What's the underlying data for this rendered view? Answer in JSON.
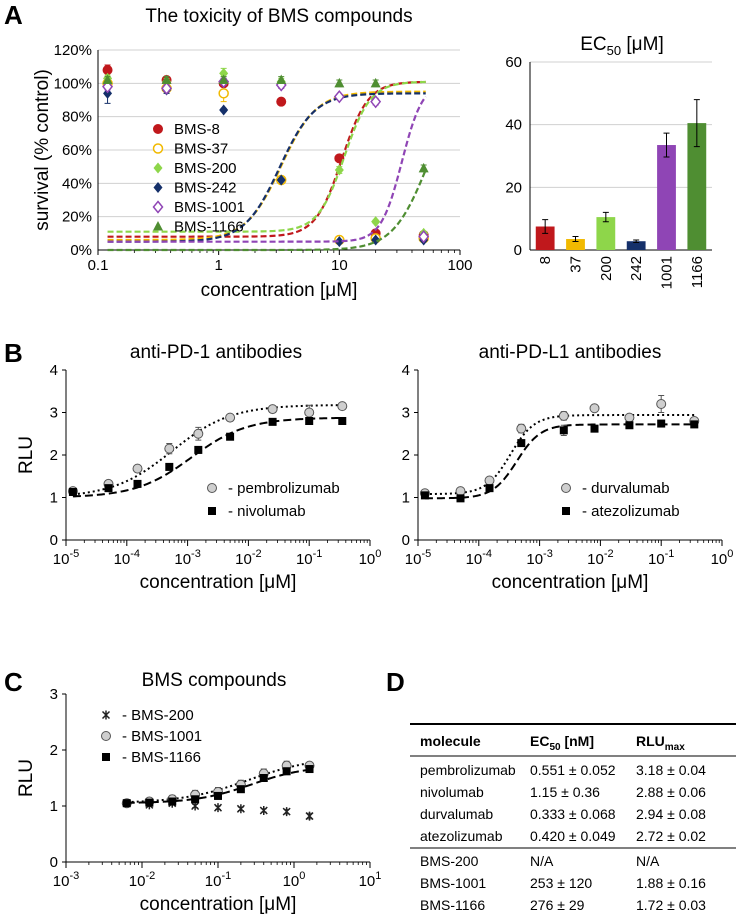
{
  "panels": {
    "A": "A",
    "B": "B",
    "C": "C",
    "D": "D"
  },
  "chart_data": [
    {
      "id": "A-curves",
      "type": "scatter",
      "title": "The toxicity of BMS compounds",
      "xlabel": "concentration [μM]",
      "ylabel": "survival (% control)",
      "xscale": "log",
      "xlim": [
        0.1,
        100
      ],
      "ylim": [
        0,
        120
      ],
      "xticks": [
        "0.1",
        "1",
        "10",
        "100"
      ],
      "yticks": [
        "0%",
        "20%",
        "40%",
        "60%",
        "80%",
        "100%",
        "120%"
      ],
      "legend": "left",
      "series": [
        {
          "name": "BMS-8",
          "color": "#c0181c",
          "marker": "circle-filled",
          "fit": {
            "top": 101,
            "bottom": 8,
            "ec50": 10.5,
            "hill": 4
          },
          "x": [
            0.12,
            0.37,
            1.1,
            3.3,
            10,
            20,
            50
          ],
          "y": [
            108,
            102,
            100,
            89,
            55,
            10,
            9
          ],
          "err": [
            3,
            2,
            2,
            2,
            2,
            1,
            1
          ]
        },
        {
          "name": "BMS-37",
          "color": "#f1b900",
          "marker": "circle-open",
          "fit": {
            "top": 95,
            "bottom": 6,
            "ec50": 3.3,
            "hill": 3
          },
          "x": [
            0.12,
            0.37,
            1.1,
            3.3,
            10,
            20,
            50
          ],
          "y": [
            100,
            97,
            94,
            42,
            6,
            7,
            7
          ],
          "err": [
            3,
            2,
            5,
            2,
            1,
            1,
            1
          ]
        },
        {
          "name": "BMS-200",
          "color": "#8ed64a",
          "marker": "diamond-filled",
          "fit": {
            "top": 101,
            "bottom": 11,
            "ec50": 11,
            "hill": 4
          },
          "x": [
            0.12,
            0.37,
            1.1,
            3.3,
            10,
            20,
            50
          ],
          "y": [
            103,
            101,
            106,
            101,
            48,
            17,
            10
          ],
          "err": [
            2,
            2,
            3,
            2,
            2,
            1,
            1
          ]
        },
        {
          "name": "BMS-242",
          "color": "#15306a",
          "marker": "diamond-filled",
          "fit": {
            "top": 94,
            "bottom": 5,
            "ec50": 3.2,
            "hill": 3
          },
          "x": [
            0.12,
            0.37,
            1.1,
            3.3,
            10,
            20,
            50
          ],
          "y": [
            94,
            96,
            84,
            42,
            5,
            6,
            6
          ],
          "err": [
            6,
            2,
            1,
            1,
            1,
            1,
            1
          ]
        },
        {
          "name": "BMS-1001",
          "color": "#8f45b5",
          "marker": "diamond-open",
          "fit": {
            "top": 101,
            "bottom": 5,
            "ec50": 33,
            "hill": 5
          },
          "x": [
            0.12,
            0.37,
            1.1,
            3.3,
            10,
            20,
            50
          ],
          "y": [
            98,
            97,
            101,
            99,
            92,
            89,
            8
          ],
          "err": [
            2,
            2,
            2,
            2,
            1,
            2,
            1
          ]
        },
        {
          "name": "BMS-1166",
          "color": "#4f8e32",
          "marker": "triangle-filled",
          "fit": {
            "top": 102,
            "bottom": 0,
            "ec50": 54,
            "hill": 3
          },
          "x": [
            0.12,
            0.37,
            1.1,
            3.3,
            10,
            20,
            50
          ],
          "y": [
            102,
            102,
            102,
            102,
            100,
            100,
            49
          ],
          "err": [
            2,
            2,
            2,
            2,
            2,
            2,
            2
          ]
        }
      ]
    },
    {
      "id": "A-bars",
      "type": "bar",
      "title": "EC₅₀ [μM]",
      "title_main": "EC",
      "title_sub": "50",
      "title_unit": " [μM]",
      "categories": [
        "8",
        "37",
        "200",
        "242",
        "1001",
        "1166"
      ],
      "values": [
        7.5,
        3.5,
        10.5,
        2.8,
        33.5,
        40.5
      ],
      "errors": [
        2.2,
        0.8,
        1.5,
        0.4,
        3.8,
        7.5
      ],
      "colors": [
        "#c0181c",
        "#f1b900",
        "#8ed64a",
        "#15306a",
        "#8f45b5",
        "#4f8e32"
      ],
      "ylim": [
        0,
        60
      ],
      "yticks": [
        "0",
        "20",
        "40",
        "60"
      ]
    },
    {
      "id": "B-left",
      "type": "scatter",
      "title": "anti-PD-1 antibodies",
      "xlabel": "concentration [μM]",
      "ylabel": "RLU",
      "xscale": "log",
      "xlim_exp": [
        -5,
        0
      ],
      "ylim": [
        0,
        4
      ],
      "yticks": [
        "0",
        "1",
        "2",
        "3",
        "4"
      ],
      "legend": "bottom-right",
      "series": [
        {
          "name": "- pembrolizumab",
          "marker": "circle-gray",
          "line": "dotted",
          "fit": {
            "top": 3.18,
            "bottom": 1.0,
            "ec50": 0.00055,
            "hill": 0.9
          },
          "x": [
            1.3e-05,
            5e-05,
            0.00015,
            0.0005,
            0.0015,
            0.005,
            0.025,
            0.1,
            0.35
          ],
          "y": [
            1.15,
            1.32,
            1.68,
            2.15,
            2.5,
            2.88,
            3.08,
            3.0,
            3.15
          ],
          "err": [
            0.03,
            0.04,
            0.05,
            0.12,
            0.15,
            0.06,
            0.08,
            0.17,
            0.05
          ]
        },
        {
          "name": "- nivolumab",
          "marker": "square-black",
          "line": "dashed",
          "fit": {
            "top": 2.88,
            "bottom": 1.0,
            "ec50": 0.00115,
            "hill": 0.95
          },
          "x": [
            1.3e-05,
            5e-05,
            0.00015,
            0.0005,
            0.0015,
            0.005,
            0.025,
            0.1,
            0.35
          ],
          "y": [
            1.13,
            1.22,
            1.32,
            1.72,
            2.12,
            2.43,
            2.78,
            2.8,
            2.8
          ],
          "err": [
            0.03,
            0.03,
            0.04,
            0.05,
            0.08,
            0.05,
            0.06,
            0.08,
            0.05
          ]
        }
      ]
    },
    {
      "id": "B-right",
      "type": "scatter",
      "title": "anti-PD-L1 antibodies",
      "xlabel": "concentration [μM]",
      "ylabel": "",
      "xscale": "log",
      "xlim_exp": [
        -5,
        0
      ],
      "ylim": [
        0,
        4
      ],
      "yticks": [
        "0",
        "1",
        "2",
        "3",
        "4"
      ],
      "legend": "bottom-right",
      "series": [
        {
          "name": "- durvalumab",
          "marker": "circle-gray",
          "line": "dotted",
          "fit": {
            "top": 2.94,
            "bottom": 1.08,
            "ec50": 0.00033,
            "hill": 2.2
          },
          "x": [
            1.3e-05,
            5e-05,
            0.00015,
            0.0005,
            0.0025,
            0.008,
            0.03,
            0.1,
            0.35
          ],
          "y": [
            1.1,
            1.15,
            1.4,
            2.62,
            2.92,
            3.1,
            2.88,
            3.2,
            2.8
          ],
          "err": [
            0.03,
            0.04,
            0.06,
            0.1,
            0.1,
            0.08,
            0.06,
            0.2,
            0.05
          ]
        },
        {
          "name": "- atezolizumab",
          "marker": "square-black",
          "line": "dashed",
          "fit": {
            "top": 2.72,
            "bottom": 0.98,
            "ec50": 0.00042,
            "hill": 2.2
          },
          "x": [
            1.3e-05,
            5e-05,
            0.00015,
            0.0005,
            0.0025,
            0.008,
            0.03,
            0.1,
            0.35
          ],
          "y": [
            1.05,
            0.98,
            1.22,
            2.28,
            2.58,
            2.62,
            2.7,
            2.74,
            2.72
          ],
          "err": [
            0.03,
            0.03,
            0.04,
            0.06,
            0.12,
            0.05,
            0.05,
            0.05,
            0.05
          ]
        }
      ]
    },
    {
      "id": "C",
      "type": "scatter",
      "title": "BMS compounds",
      "xlabel": "concentration [μM]",
      "ylabel": "RLU",
      "xscale": "log",
      "xlim_exp": [
        -3,
        1
      ],
      "ylim": [
        0,
        3
      ],
      "yticks": [
        "0",
        "1",
        "2",
        "3"
      ],
      "legend": "top-left",
      "series": [
        {
          "name": "- BMS-200",
          "marker": "star",
          "line": "none",
          "x": [
            0.0063,
            0.0125,
            0.025,
            0.05,
            0.1,
            0.2,
            0.4,
            0.8,
            1.6
          ],
          "y": [
            1.05,
            1.02,
            1.05,
            1.0,
            0.97,
            0.95,
            0.92,
            0.9,
            0.82
          ],
          "err": [
            0.03,
            0.03,
            0.03,
            0.03,
            0.03,
            0.03,
            0.03,
            0.04,
            0.05
          ]
        },
        {
          "name": "- BMS-1001",
          "marker": "circle-gray",
          "line": "dotted",
          "fit": {
            "top": 1.88,
            "bottom": 1.05,
            "ec50": 0.253,
            "hill": 1.0
          },
          "x": [
            0.0063,
            0.0125,
            0.025,
            0.05,
            0.1,
            0.2,
            0.4,
            0.8,
            1.6
          ],
          "y": [
            1.05,
            1.08,
            1.12,
            1.2,
            1.25,
            1.38,
            1.58,
            1.72,
            1.72
          ],
          "err": [
            0.05,
            0.06,
            0.07,
            0.08,
            0.08,
            0.08,
            0.08,
            0.08,
            0.05
          ]
        },
        {
          "name": "- BMS-1166",
          "marker": "square-black",
          "line": "dashed",
          "fit": {
            "top": 1.72,
            "bottom": 1.05,
            "ec50": 0.276,
            "hill": 1.2
          },
          "x": [
            0.0063,
            0.0125,
            0.025,
            0.05,
            0.1,
            0.2,
            0.4,
            0.8,
            1.6
          ],
          "y": [
            1.05,
            1.06,
            1.08,
            1.12,
            1.18,
            1.3,
            1.5,
            1.62,
            1.66
          ],
          "err": [
            0.03,
            0.04,
            0.04,
            0.05,
            0.06,
            0.06,
            0.06,
            0.06,
            0.04
          ]
        }
      ]
    },
    {
      "id": "D",
      "type": "table",
      "columns": [
        "molecule",
        "EC50 [nM]",
        "RLUmax"
      ],
      "header": [
        {
          "main": "molecule",
          "sub": ""
        },
        {
          "main": "EC",
          "sub": "50",
          "rest": " [nM]"
        },
        {
          "main": "RLU",
          "sub": "max",
          "rest": ""
        }
      ],
      "rows": [
        [
          "pembrolizumab",
          "0.551 ± 0.052",
          "3.18 ± 0.04"
        ],
        [
          "nivolumab",
          "1.15 ± 0.36",
          "2.88 ± 0.06"
        ],
        [
          "durvalumab",
          "0.333 ± 0.068",
          "2.94 ± 0.08"
        ],
        [
          "atezolizumab",
          "0.420 ± 0.049",
          "2.72 ± 0.02"
        ],
        [
          "BMS-200",
          "N/A",
          "N/A"
        ],
        [
          "BMS-1001",
          "253 ± 120",
          "1.88 ± 0.16"
        ],
        [
          "BMS-1166",
          "276 ± 29",
          "1.72 ± 0.03"
        ]
      ]
    }
  ]
}
